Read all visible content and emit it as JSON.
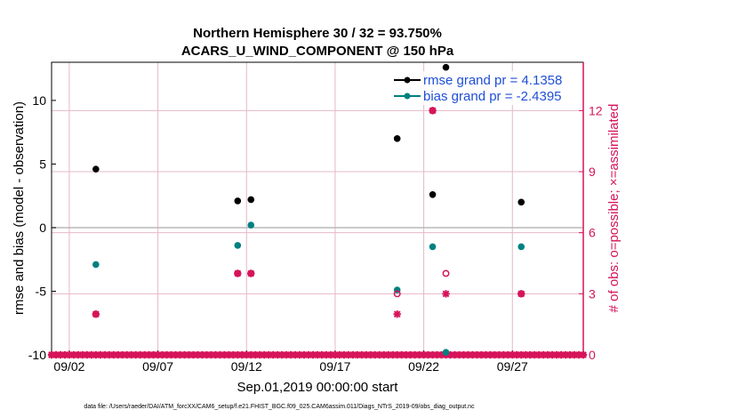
{
  "chart_data": {
    "type": "scatter",
    "title_line1": "Northern Hemisphere 30 / 32 = 93.750%",
    "title_line2": "ACARS_U_WIND_COMPONENT @ 150 hPa",
    "xlabel": "Sep.01,2019 00:00:00 start",
    "ylabel_left": "rmse and bias (model - observation)",
    "ylabel_right": "# of obs: o=possible; ×=assimilated",
    "footnote": "data file: /Users/raeder/DAI/ATM_forcXX/CAM6_setup/f.e21.FHIST_BGC.f09_025.CAM6assim.011/Diags_NTrS_2019-09/obs_diag_output.nc",
    "xlim": [
      1,
      31
    ],
    "ylim_left": [
      -10,
      13
    ],
    "ylim_right": [
      0,
      14.375
    ],
    "left_ticks": [
      "-10",
      "-5",
      "0",
      "5",
      "10"
    ],
    "left_tick_values": [
      -10,
      -5,
      0,
      5,
      10
    ],
    "right_ticks": [
      "0",
      "3",
      "6",
      "9",
      "12"
    ],
    "right_tick_values": [
      0,
      3,
      6,
      9,
      12
    ],
    "x_tick_labels": [
      "09/02",
      "09/07",
      "09/12",
      "09/17",
      "09/22",
      "09/27"
    ],
    "x_tick_values": [
      2,
      7,
      12,
      17,
      22,
      27
    ],
    "zero_line": 0,
    "legend": [
      {
        "label": "rmse grand pr = 4.1358",
        "color": "#000000"
      },
      {
        "label": "bias grand pr = -2.4395",
        "color": "#008080"
      }
    ],
    "legend_position": "top-right",
    "colors": {
      "rmse": "#000000",
      "bias": "#008080",
      "obs": "#d6145a",
      "legend_text": "#1f4fd6",
      "zero_line": "#b8b8b8",
      "grid": "#e6b8c6"
    },
    "series": [
      {
        "name": "rmse grand pr = 4.1358",
        "axis": "left",
        "marker": "dot",
        "x": [
          3.5,
          11.5,
          12.25,
          20.5,
          22.5,
          23.25,
          27.5
        ],
        "y": [
          4.6,
          2.1,
          2.2,
          7.0,
          2.6,
          12.6,
          2.0
        ]
      },
      {
        "name": "bias grand pr = -2.4395",
        "axis": "left",
        "marker": "dot",
        "x": [
          3.5,
          11.5,
          12.25,
          20.5,
          22.5,
          23.25,
          27.5
        ],
        "y": [
          -2.9,
          -1.4,
          0.2,
          -4.9,
          -1.5,
          -9.8,
          -1.5
        ]
      },
      {
        "axis": "right",
        "marker": "circle",
        "x": [
          3.5,
          11.5,
          12.25,
          20.5,
          22.5,
          23.25,
          27.5
        ],
        "y": [
          2,
          4,
          4,
          3,
          12,
          4,
          3
        ]
      },
      {
        "axis": "right",
        "marker": "star",
        "x": [
          3.5,
          11.5,
          12.25,
          20.5,
          22.5,
          23.25,
          27.5
        ],
        "y": [
          2,
          4,
          4,
          2,
          12,
          3,
          3
        ]
      }
    ],
    "zero_obs_x_start": 1,
    "zero_obs_x_end": 31,
    "zero_obs_step": 0.25
  }
}
